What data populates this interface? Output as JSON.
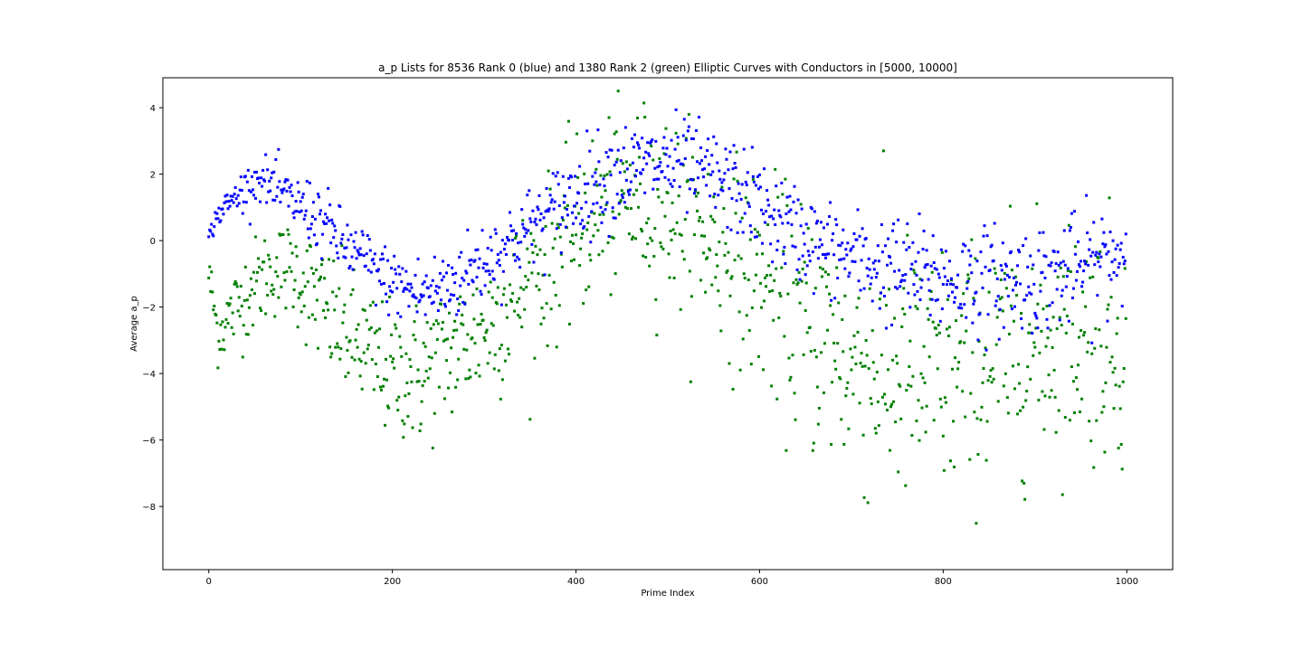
{
  "chart_data": {
    "type": "scatter",
    "title": "a_p Lists for 8536 Rank 0 (blue) and 1380 Rank 2 (green) Elliptic Curves with Conductors in [5000, 10000]",
    "xlabel": "Prime Index",
    "ylabel": "Average a_p",
    "xlim": [
      -50,
      1050
    ],
    "ylim": [
      -9.9,
      4.9
    ],
    "xticks": [
      0,
      200,
      400,
      600,
      800,
      1000
    ],
    "xtick_labels": [
      "0",
      "200",
      "400",
      "600",
      "800",
      "1000"
    ],
    "yticks": [
      4,
      2,
      0,
      -2,
      -4,
      -6,
      -8
    ],
    "ytick_labels": [
      "4",
      "2",
      "0",
      "−2",
      "−4",
      "−6",
      "−8"
    ],
    "grid": false,
    "legend": "none",
    "n_points_per_series": 1000,
    "series": [
      {
        "color": "#0000ff",
        "trend_x": [
          0,
          10,
          25,
          40,
          55,
          70,
          90,
          110,
          130,
          150,
          170,
          190,
          210,
          230,
          250,
          270,
          290,
          310,
          330,
          350,
          370,
          390,
          410,
          430,
          450,
          470,
          490,
          510,
          530,
          550,
          570,
          590,
          610,
          630,
          650,
          670,
          690,
          710,
          730,
          750,
          770,
          790,
          810,
          830,
          850,
          870,
          890,
          910,
          930,
          950,
          970,
          990,
          1000
        ],
        "trend_y": [
          0.1,
          0.8,
          1.2,
          1.6,
          1.9,
          1.6,
          1.2,
          0.9,
          0.4,
          -0.2,
          -0.6,
          -1.1,
          -1.4,
          -1.6,
          -1.5,
          -1.2,
          -0.8,
          -0.4,
          0.0,
          0.4,
          0.8,
          1.2,
          1.6,
          1.9,
          2.1,
          2.2,
          2.3,
          2.3,
          2.1,
          1.9,
          1.6,
          1.3,
          0.8,
          0.4,
          0.1,
          -0.2,
          -0.4,
          -0.6,
          -0.8,
          -0.9,
          -1.0,
          -1.1,
          -1.2,
          -1.2,
          -1.2,
          -1.2,
          -1.1,
          -1.1,
          -1.0,
          -0.8,
          -0.6,
          -0.4,
          -0.3
        ],
        "spread": [
          0.1,
          0.2,
          0.25,
          0.3,
          0.3,
          0.4,
          0.4,
          0.5,
          0.5,
          0.5,
          0.5,
          0.5,
          0.5,
          0.6,
          0.6,
          0.6,
          0.6,
          0.6,
          0.6,
          0.6,
          0.6,
          0.7,
          0.7,
          0.7,
          0.7,
          0.7,
          0.7,
          0.7,
          0.7,
          0.7,
          0.7,
          0.7,
          0.7,
          0.7,
          0.7,
          0.7,
          0.7,
          0.7,
          0.8,
          0.8,
          0.8,
          0.8,
          0.8,
          0.8,
          0.8,
          0.8,
          0.8,
          0.8,
          0.8,
          0.8,
          0.8,
          0.8,
          0.8
        ]
      },
      {
        "color": "#008000",
        "trend_x": [
          0,
          10,
          25,
          40,
          55,
          70,
          90,
          110,
          130,
          150,
          170,
          190,
          210,
          230,
          250,
          270,
          290,
          310,
          330,
          350,
          370,
          390,
          410,
          430,
          450,
          470,
          490,
          510,
          530,
          550,
          570,
          590,
          610,
          630,
          650,
          670,
          690,
          710,
          730,
          750,
          770,
          790,
          810,
          830,
          850,
          870,
          890,
          910,
          930,
          950,
          970,
          990,
          1000
        ],
        "trend_y": [
          -1.0,
          -2.8,
          -2.2,
          -1.6,
          -1.2,
          -0.9,
          -0.8,
          -1.5,
          -2.2,
          -2.8,
          -3.3,
          -3.8,
          -4.0,
          -4.0,
          -3.6,
          -3.2,
          -2.8,
          -2.4,
          -1.8,
          -1.2,
          -0.6,
          0.0,
          0.5,
          0.9,
          1.2,
          1.3,
          1.2,
          0.8,
          0.4,
          0.0,
          -0.5,
          -1.0,
          -1.5,
          -2.0,
          -2.5,
          -2.9,
          -3.3,
          -3.6,
          -3.8,
          -4.0,
          -4.1,
          -4.1,
          -4.0,
          -3.8,
          -3.6,
          -3.4,
          -3.2,
          -3.0,
          -2.8,
          -2.8,
          -2.9,
          -3.1,
          -3.2
        ],
        "spread": [
          0.4,
          0.5,
          0.6,
          0.7,
          0.7,
          0.7,
          0.7,
          0.9,
          1.0,
          1.0,
          1.0,
          1.0,
          1.0,
          1.1,
          1.1,
          1.1,
          1.1,
          1.2,
          1.2,
          1.2,
          1.2,
          1.3,
          1.3,
          1.3,
          1.3,
          1.4,
          1.4,
          1.4,
          1.4,
          1.4,
          1.5,
          1.5,
          1.6,
          1.7,
          1.8,
          1.9,
          2.0,
          2.0,
          2.0,
          2.0,
          2.0,
          2.0,
          1.9,
          1.8,
          1.8,
          1.8,
          1.8,
          1.7,
          1.7,
          1.7,
          1.8,
          1.8,
          1.8
        ]
      }
    ]
  }
}
